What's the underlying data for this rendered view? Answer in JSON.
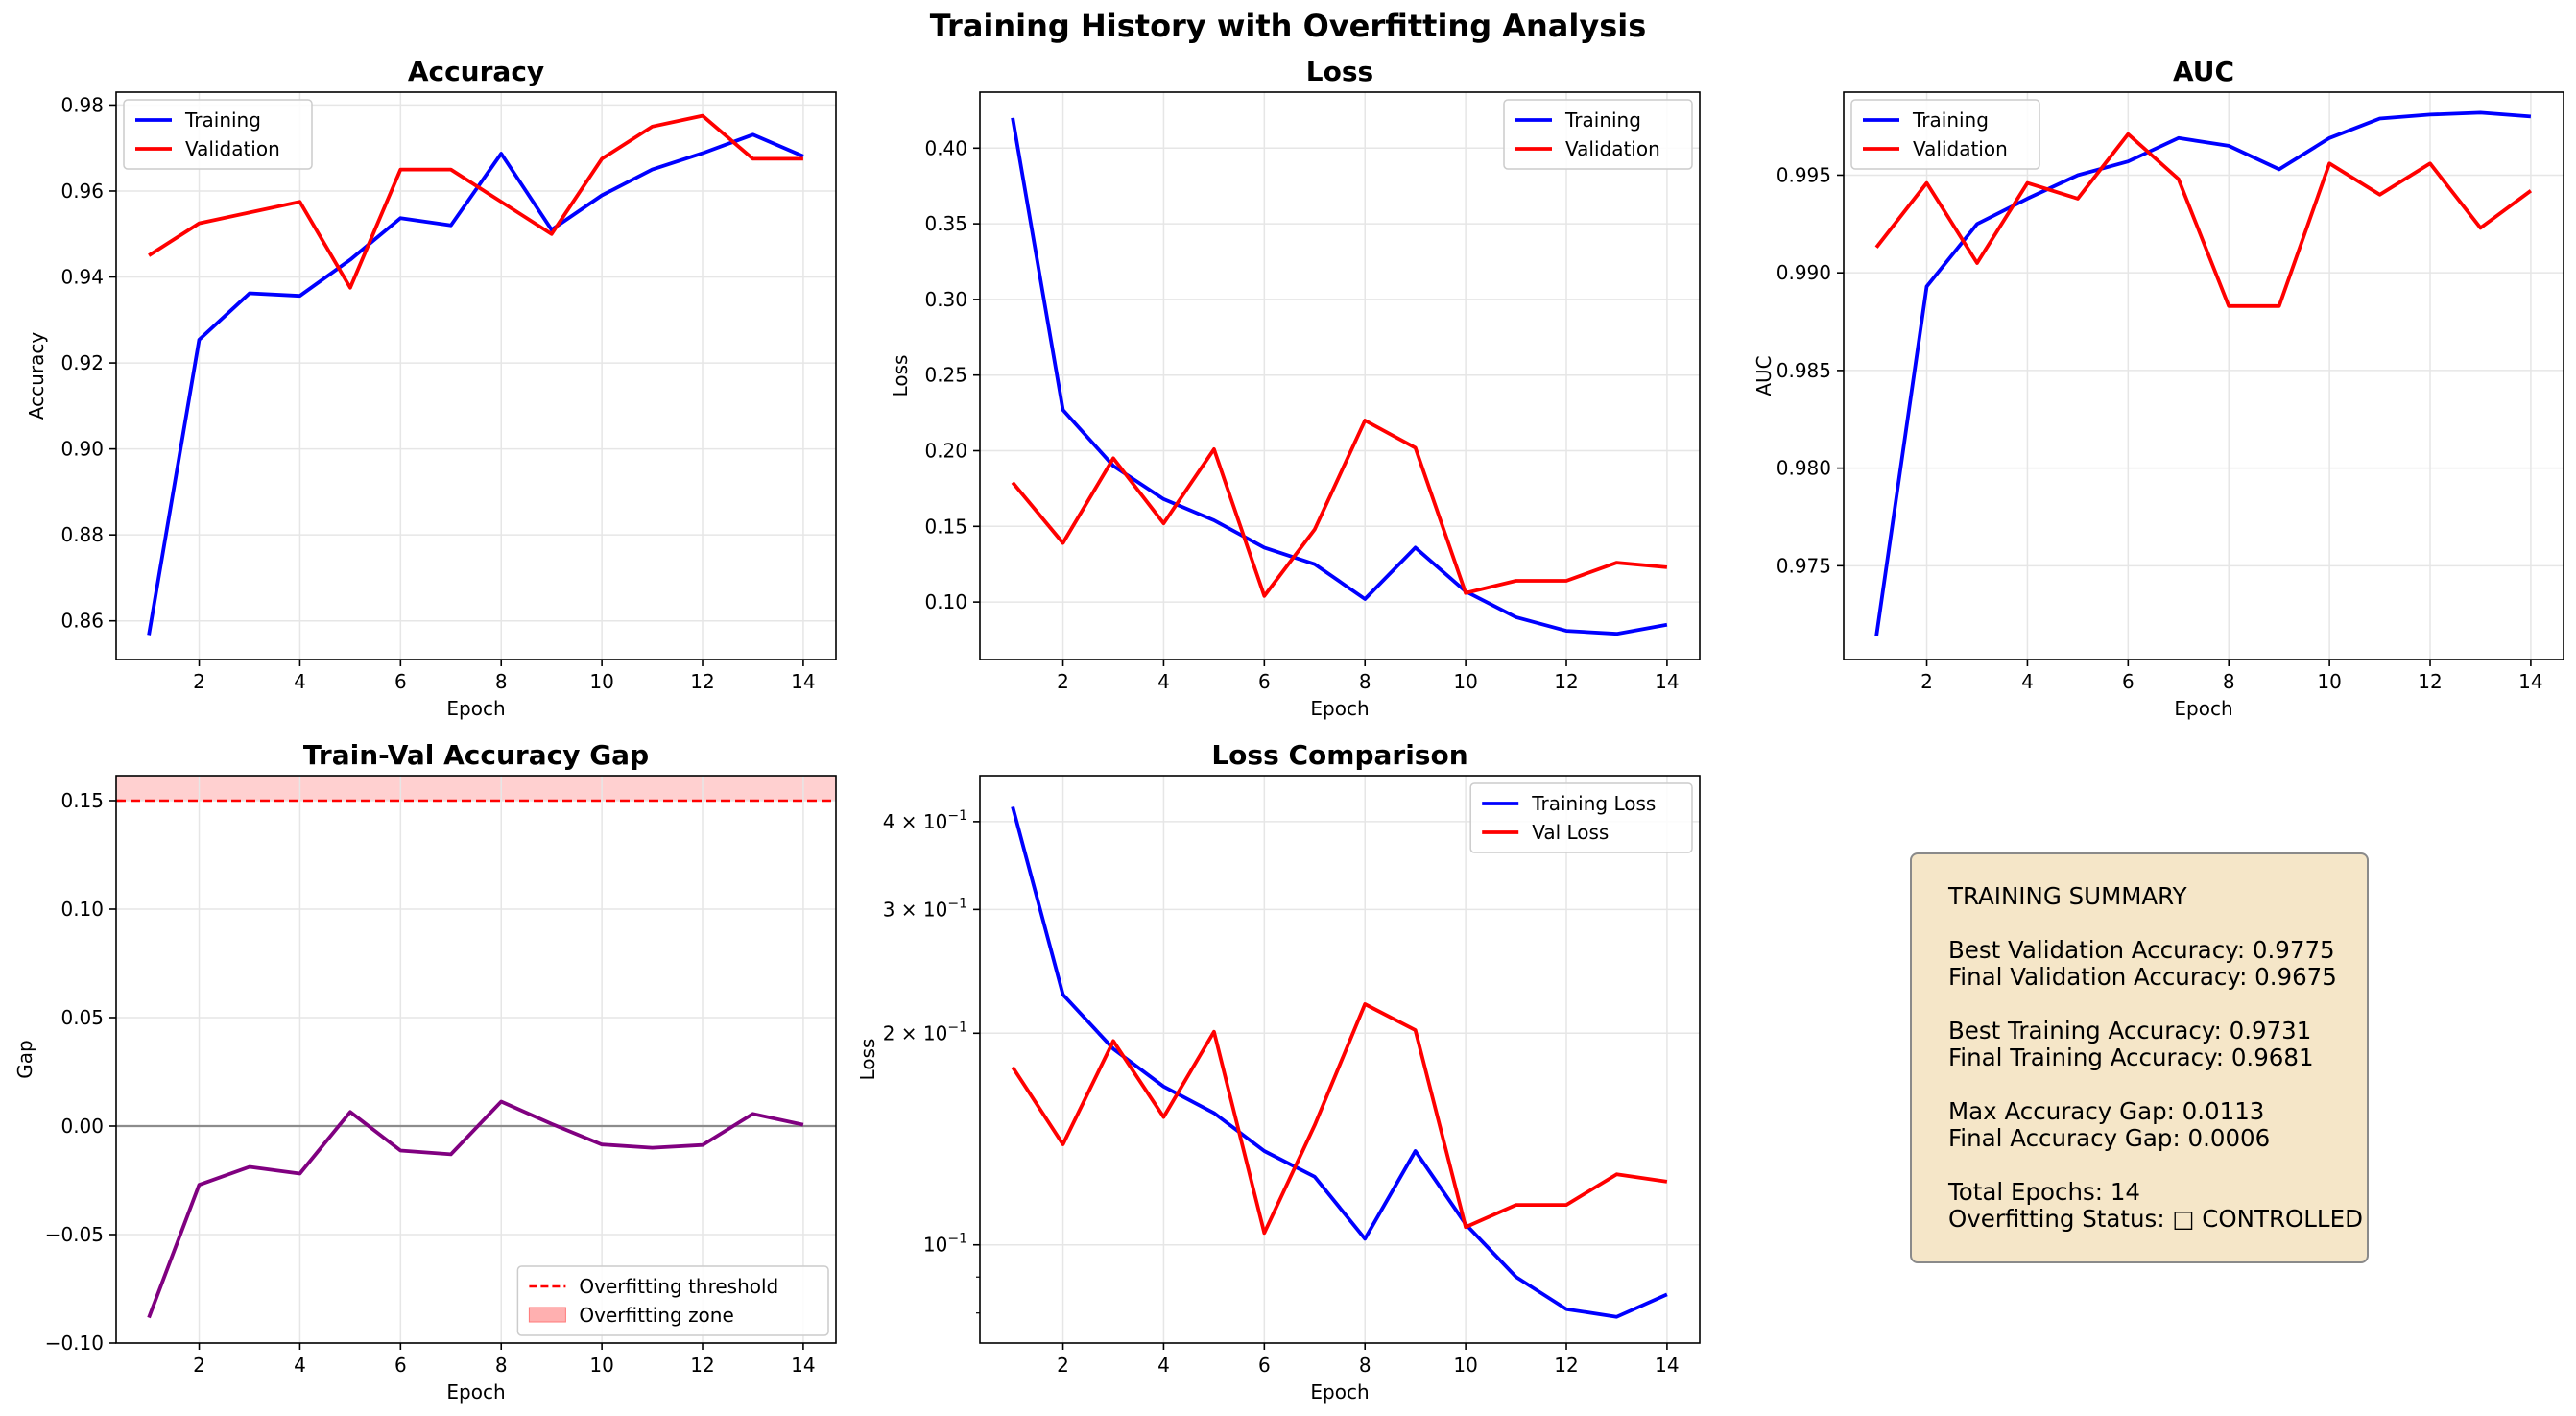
{
  "title": "Training History with Overfitting Analysis",
  "colors": {
    "training": "#0000ff",
    "validation": "#ff0000",
    "gap": "#800080",
    "threshold": "#ff0000",
    "zone": "#ffb0b0",
    "summary_bg": "#f5e6c8"
  },
  "chart_data": [
    {
      "type": "line",
      "title": "Accuracy",
      "xlabel": "Epoch",
      "ylabel": "Accuracy",
      "x": [
        1,
        2,
        3,
        4,
        5,
        6,
        7,
        8,
        9,
        10,
        11,
        12,
        13,
        14
      ],
      "xticks": [
        2,
        4,
        6,
        8,
        10,
        12,
        14
      ],
      "yticks": [
        0.86,
        0.88,
        0.9,
        0.92,
        0.94,
        0.96,
        0.98
      ],
      "ytick_labels": [
        "0.86",
        "0.88",
        "0.90",
        "0.92",
        "0.94",
        "0.96",
        "0.98"
      ],
      "xlim": [
        0.35,
        14.65
      ],
      "ylim": [
        0.851,
        0.983
      ],
      "grid": true,
      "legend_position": "upper-left",
      "series": [
        {
          "name": "Training",
          "color": "#0000ff",
          "values": [
            0.8567,
            0.9254,
            0.9362,
            0.9356,
            0.944,
            0.9537,
            0.952,
            0.9687,
            0.951,
            0.959,
            0.965,
            0.9688,
            0.9731,
            0.9681
          ]
        },
        {
          "name": "Validation",
          "color": "#ff0000",
          "values": [
            0.945,
            0.9525,
            0.955,
            0.9575,
            0.9375,
            0.965,
            0.965,
            0.9575,
            0.95,
            0.9675,
            0.975,
            0.9775,
            0.9675,
            0.9675
          ]
        }
      ]
    },
    {
      "type": "line",
      "title": "Loss",
      "xlabel": "Epoch",
      "ylabel": "Loss",
      "x": [
        1,
        2,
        3,
        4,
        5,
        6,
        7,
        8,
        9,
        10,
        11,
        12,
        13,
        14
      ],
      "xticks": [
        2,
        4,
        6,
        8,
        10,
        12,
        14
      ],
      "yticks": [
        0.1,
        0.15,
        0.2,
        0.25,
        0.3,
        0.35,
        0.4
      ],
      "ytick_labels": [
        "0.10",
        "0.15",
        "0.20",
        "0.25",
        "0.30",
        "0.35",
        "0.40"
      ],
      "xlim": [
        0.35,
        14.65
      ],
      "ylim": [
        0.062,
        0.437
      ],
      "grid": true,
      "legend_position": "upper-right",
      "series": [
        {
          "name": "Training",
          "color": "#0000ff",
          "values": [
            0.42,
            0.227,
            0.19,
            0.168,
            0.154,
            0.136,
            0.125,
            0.102,
            0.136,
            0.107,
            0.09,
            0.081,
            0.079,
            0.085
          ]
        },
        {
          "name": "Validation",
          "color": "#ff0000",
          "values": [
            0.179,
            0.139,
            0.195,
            0.152,
            0.201,
            0.104,
            0.148,
            0.22,
            0.202,
            0.106,
            0.114,
            0.114,
            0.126,
            0.123
          ]
        }
      ]
    },
    {
      "type": "line",
      "title": "AUC",
      "xlabel": "Epoch",
      "ylabel": "AUC",
      "x": [
        1,
        2,
        3,
        4,
        5,
        6,
        7,
        8,
        9,
        10,
        11,
        12,
        13,
        14
      ],
      "xticks": [
        2,
        4,
        6,
        8,
        10,
        12,
        14
      ],
      "yticks": [
        0.975,
        0.98,
        0.985,
        0.99,
        0.995
      ],
      "ytick_labels": [
        "0.975",
        "0.980",
        "0.985",
        "0.990",
        "0.995"
      ],
      "xlim": [
        0.35,
        14.65
      ],
      "ylim": [
        0.9702,
        0.99925
      ],
      "grid": true,
      "legend_position": "upper-left",
      "series": [
        {
          "name": "Training",
          "color": "#0000ff",
          "values": [
            0.9714,
            0.9893,
            0.9925,
            0.9938,
            0.995,
            0.9957,
            0.9969,
            0.9965,
            0.9953,
            0.9969,
            0.9979,
            0.9981,
            0.9982,
            0.998
          ]
        },
        {
          "name": "Validation",
          "color": "#ff0000",
          "values": [
            0.9913,
            0.9946,
            0.9905,
            0.9946,
            0.9938,
            0.9971,
            0.9948,
            0.9883,
            0.9883,
            0.9956,
            0.994,
            0.9956,
            0.9923,
            0.9942
          ]
        }
      ]
    },
    {
      "type": "line",
      "title": "Train-Val Accuracy Gap",
      "xlabel": "Epoch",
      "ylabel": "Gap",
      "x": [
        1,
        2,
        3,
        4,
        5,
        6,
        7,
        8,
        9,
        10,
        11,
        12,
        13,
        14
      ],
      "xticks": [
        2,
        4,
        6,
        8,
        10,
        12,
        14
      ],
      "yticks": [
        -0.1,
        -0.05,
        0.0,
        0.05,
        0.1,
        0.15
      ],
      "ytick_labels": [
        "−0.10",
        "−0.05",
        "0.00",
        "0.05",
        "0.10",
        "0.15"
      ],
      "xlim": [
        0.35,
        14.65
      ],
      "ylim": [
        -0.1,
        0.1615
      ],
      "grid": true,
      "legend_position": "lower-right",
      "threshold": 0.15,
      "zero_line": 0,
      "series": [
        {
          "name": "",
          "color": "#800080",
          "values": [
            -0.0883,
            -0.0271,
            -0.0188,
            -0.0219,
            0.0065,
            -0.0113,
            -0.013,
            0.0113,
            0.001,
            -0.0085,
            -0.01,
            -0.0087,
            0.0056,
            0.0006
          ]
        }
      ],
      "legend": [
        {
          "label": "Overfitting threshold",
          "kind": "dashed",
          "color": "#ff0000"
        },
        {
          "label": "Overfitting zone",
          "kind": "patch",
          "color": "#ffb0b0"
        }
      ]
    },
    {
      "type": "line",
      "title": "Loss Comparison",
      "xlabel": "Epoch",
      "ylabel": "Loss",
      "log_scale_y": true,
      "x": [
        1,
        2,
        3,
        4,
        5,
        6,
        7,
        8,
        9,
        10,
        11,
        12,
        13,
        14
      ],
      "xticks": [
        2,
        4,
        6,
        8,
        10,
        12,
        14
      ],
      "yticks": [
        0.1,
        0.2,
        0.3,
        0.4
      ],
      "ytick_labels": [
        {
          "base": "10",
          "exp": "−1",
          "prefix": ""
        },
        {
          "base": "10",
          "exp": "−1",
          "prefix": "2 × "
        },
        {
          "base": "10",
          "exp": "−1",
          "prefix": "3 × "
        },
        {
          "base": "10",
          "exp": "−1",
          "prefix": "4 × "
        }
      ],
      "minor_yticks": [
        0.09,
        0.08
      ],
      "xlim": [
        0.35,
        14.65
      ],
      "ylim": [
        0.0725,
        0.465
      ],
      "grid": true,
      "legend_position": "upper-right",
      "series": [
        {
          "name": "Training Loss",
          "color": "#0000ff",
          "values": [
            0.42,
            0.227,
            0.19,
            0.168,
            0.154,
            0.136,
            0.125,
            0.102,
            0.136,
            0.107,
            0.09,
            0.081,
            0.079,
            0.085
          ]
        },
        {
          "name": "Val Loss",
          "color": "#ff0000",
          "values": [
            0.179,
            0.139,
            0.195,
            0.152,
            0.201,
            0.104,
            0.148,
            0.22,
            0.202,
            0.106,
            0.114,
            0.114,
            0.126,
            0.123
          ]
        }
      ]
    }
  ],
  "summary": {
    "heading": "TRAINING SUMMARY",
    "best_val": "Best Validation Accuracy: 0.9775",
    "final_val": "Final Validation Accuracy: 0.9675",
    "best_train": "Best Training Accuracy: 0.9731",
    "final_train": "Final Training Accuracy: 0.9681",
    "max_gap": "Max Accuracy Gap: 0.0113",
    "final_gap": "Final Accuracy Gap: 0.0006",
    "epochs": "Total Epochs: 14",
    "status": "Overfitting Status: □ CONTROLLED"
  }
}
